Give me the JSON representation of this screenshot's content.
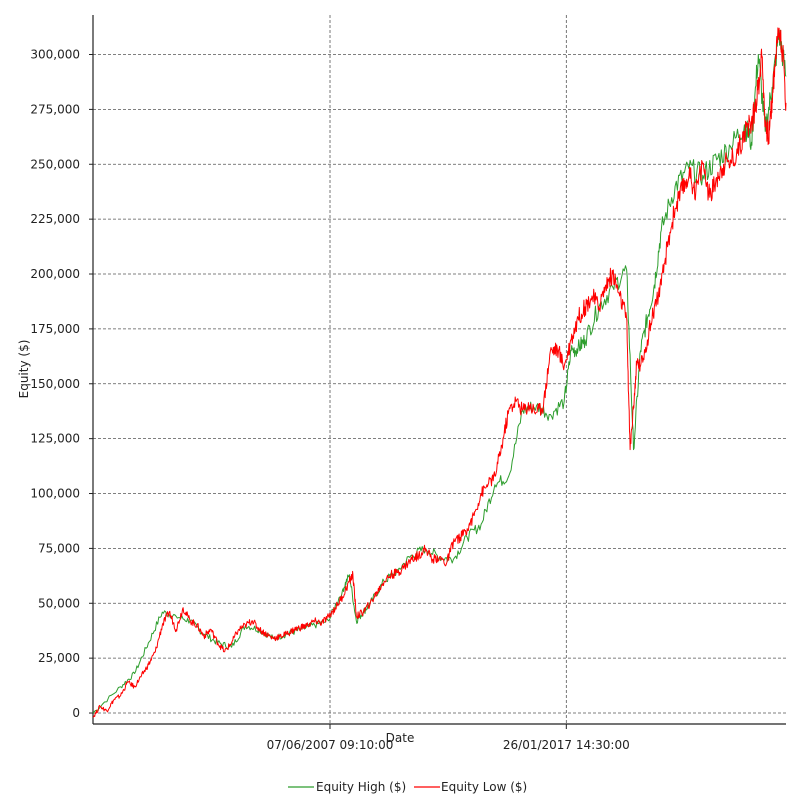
{
  "chart_data": {
    "type": "line",
    "title": "",
    "xlabel": "Date",
    "ylabel": "Equity ($)",
    "x_tick_labels": [
      "07/06/2007 09:10:00",
      "26/01/2017 14:30:00"
    ],
    "y_tick_labels": [
      "0",
      "25,000",
      "50,000",
      "75,000",
      "100,000",
      "125,000",
      "150,000",
      "175,000",
      "200,000",
      "225,000",
      "250,000",
      "275,000",
      "300,000"
    ],
    "y_ticks": [
      0,
      25000,
      50000,
      75000,
      100000,
      125000,
      150000,
      175000,
      200000,
      225000,
      250000,
      275000,
      300000
    ],
    "ylim": [
      -5000,
      318000
    ],
    "x_index_range": [
      0,
      1000
    ],
    "x_tick_index": [
      342,
      683
    ],
    "grid": true,
    "legend_position": "bottom",
    "series": [
      {
        "name": "Equity High ($)",
        "color": "#2e9e2e",
        "x": [
          0,
          40,
          60,
          80,
          100,
          120,
          140,
          160,
          180,
          200,
          220,
          240,
          260,
          280,
          300,
          320,
          340,
          360,
          370,
          380,
          390,
          400,
          420,
          440,
          460,
          480,
          500,
          520,
          540,
          560,
          580,
          600,
          620,
          640,
          660,
          680,
          690,
          700,
          710,
          730,
          750,
          770,
          780,
          790,
          800,
          810,
          820,
          840,
          860,
          880,
          900,
          920,
          940,
          950,
          960,
          970,
          980,
          990,
          1000
        ],
        "values": [
          0,
          12000,
          18000,
          32000,
          46000,
          44000,
          42000,
          36000,
          32000,
          30000,
          40000,
          38000,
          34000,
          36000,
          38000,
          40000,
          42000,
          56000,
          63000,
          42000,
          46000,
          50000,
          60000,
          65000,
          72000,
          75000,
          71000,
          70000,
          80000,
          86000,
          104000,
          108000,
          138000,
          140000,
          136000,
          142000,
          165000,
          166000,
          170000,
          185000,
          194000,
          202000,
          120000,
          165000,
          180000,
          195000,
          220000,
          240000,
          248000,
          245000,
          252000,
          258000,
          268000,
          260000,
          300000,
          265000,
          285000,
          310000,
          290000
        ]
      },
      {
        "name": "Equity Low ($)",
        "color": "#ff0000",
        "x": [
          0,
          10,
          20,
          30,
          40,
          50,
          60,
          70,
          80,
          90,
          100,
          110,
          120,
          130,
          140,
          150,
          160,
          170,
          180,
          190,
          200,
          210,
          220,
          230,
          240,
          250,
          260,
          270,
          280,
          290,
          300,
          310,
          320,
          330,
          340,
          350,
          360,
          370,
          375,
          380,
          390,
          400,
          410,
          420,
          430,
          440,
          450,
          460,
          470,
          480,
          490,
          500,
          510,
          520,
          530,
          540,
          550,
          560,
          570,
          580,
          590,
          600,
          610,
          620,
          630,
          640,
          650,
          660,
          670,
          680,
          690,
          700,
          710,
          720,
          730,
          740,
          750,
          760,
          770,
          775,
          780,
          785,
          790,
          800,
          810,
          820,
          830,
          840,
          850,
          860,
          870,
          880,
          890,
          900,
          910,
          920,
          930,
          940,
          950,
          955,
          960,
          965,
          970,
          975,
          980,
          985,
          990,
          995,
          1000
        ],
        "values": [
          -2000,
          3000,
          1000,
          6000,
          8000,
          14000,
          12000,
          17000,
          22000,
          28000,
          40000,
          46000,
          38000,
          48000,
          42000,
          40000,
          35000,
          38000,
          32000,
          28000,
          32000,
          38000,
          40000,
          42000,
          38000,
          36000,
          34000,
          35000,
          36000,
          38000,
          39000,
          40000,
          42000,
          41000,
          44000,
          48000,
          53000,
          60000,
          63000,
          44000,
          46000,
          50000,
          55000,
          60000,
          63000,
          64000,
          67000,
          70000,
          72000,
          75000,
          70000,
          71000,
          68000,
          78000,
          80000,
          84000,
          90000,
          100000,
          104000,
          108000,
          122000,
          138000,
          142000,
          138000,
          140000,
          137000,
          140000,
          165000,
          166000,
          158000,
          170000,
          180000,
          185000,
          190000,
          185000,
          195000,
          200000,
          190000,
          180000,
          120000,
          140000,
          160000,
          158000,
          170000,
          185000,
          195000,
          215000,
          230000,
          238000,
          245000,
          238000,
          250000,
          235000,
          244000,
          250000,
          252000,
          255000,
          265000,
          268000,
          275000,
          285000,
          300000,
          270000,
          262000,
          280000,
          300000,
          312000,
          302000,
          278000
        ]
      }
    ]
  }
}
